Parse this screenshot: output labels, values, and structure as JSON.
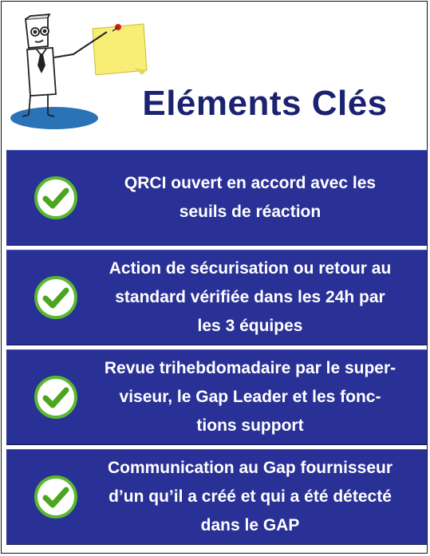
{
  "title": "Eléments Clés",
  "items": [
    {
      "text": "QRCI ouvert en accord avec les\nseuils de réaction",
      "icon": "check-icon"
    },
    {
      "text": "Action de sécurisation ou retour au\nstandard vérifiée dans les 24h par\nles 3 équipes",
      "icon": "check-icon"
    },
    {
      "text": "Revue trihebdomadaire par le super-\nviseur, le Gap Leader et les fonc-\ntions support",
      "icon": "check-icon"
    },
    {
      "text": "Communication au Gap fournisseur\nd’un qu’il a créé et qui a été détecté\ndans le GAP",
      "icon": "check-icon"
    }
  ],
  "colors": {
    "panel": "#2a3196",
    "title": "#1b2270",
    "check_ring": "#5ab82e",
    "check_mark": "#4aa51f"
  }
}
